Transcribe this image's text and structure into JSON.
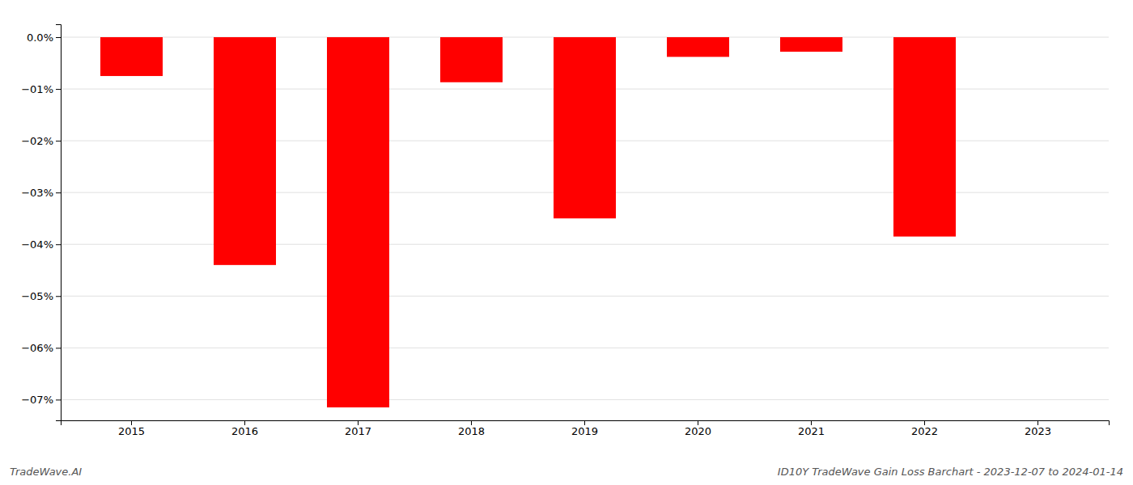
{
  "chart_data": {
    "type": "bar",
    "title": "ID10Y TradeWave Gain Loss Barchart - 2023-12-07 to 2024-01-14",
    "annotations": [
      "TradeWave.AI"
    ],
    "categories": [
      "2015",
      "2016",
      "2017",
      "2018",
      "2019",
      "2020",
      "2021",
      "2022",
      "2023"
    ],
    "values": [
      -0.75,
      -4.4,
      -7.15,
      -0.87,
      -3.5,
      -0.38,
      -0.28,
      -3.85,
      0.0
    ],
    "color": "#FF0000",
    "ylim": [
      -7.4,
      0.25
    ],
    "yticks": [
      {
        "value": 0.0,
        "label": "0.0%"
      },
      {
        "value": -1.0,
        "label": "−01%"
      },
      {
        "value": -2.0,
        "label": "−02%"
      },
      {
        "value": -3.0,
        "label": "−03%"
      },
      {
        "value": -4.0,
        "label": "−04%"
      },
      {
        "value": -5.0,
        "label": "−05%"
      },
      {
        "value": -6.0,
        "label": "−06%"
      },
      {
        "value": -7.0,
        "label": "−07%"
      }
    ],
    "grid": true
  }
}
